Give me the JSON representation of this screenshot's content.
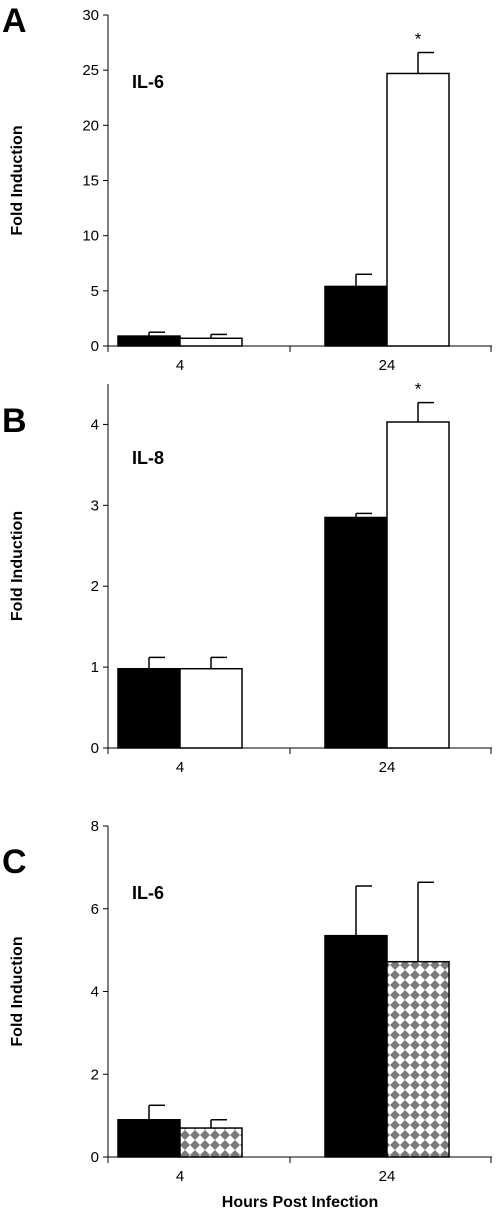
{
  "chart_data": [
    {
      "type": "bar",
      "panel": "A",
      "annotation": "IL-6",
      "ylabel": "Fold Induction",
      "xlabel": "",
      "categories": [
        "4",
        "24"
      ],
      "ylim": [
        0,
        30
      ],
      "yticks": [
        0,
        5,
        10,
        15,
        20,
        25,
        30
      ],
      "series": [
        {
          "values": [
            0.9,
            5.4
          ],
          "errors": [
            0.35,
            1.1
          ],
          "fill": "#000000"
        },
        {
          "values": [
            0.7,
            24.7
          ],
          "errors": [
            0.35,
            1.9
          ],
          "fill": "#ffffff"
        }
      ],
      "significance": [
        {
          "category": 1,
          "series": 1,
          "label": "*"
        }
      ]
    },
    {
      "type": "bar",
      "panel": "B",
      "annotation": "IL-8",
      "ylabel": "Fold Induction",
      "xlabel": "",
      "categories": [
        "4",
        "24"
      ],
      "ylim": [
        0,
        4.5
      ],
      "yticks": [
        0,
        1,
        2,
        3,
        4
      ],
      "series": [
        {
          "values": [
            0.98,
            2.85
          ],
          "errors": [
            0.14,
            0.05
          ],
          "fill": "#000000"
        },
        {
          "values": [
            0.98,
            4.03
          ],
          "errors": [
            0.14,
            0.24
          ],
          "fill": "#ffffff"
        }
      ],
      "significance": [
        {
          "category": 1,
          "series": 1,
          "label": "*"
        }
      ]
    },
    {
      "type": "bar",
      "panel": "C",
      "annotation": "IL-6",
      "ylabel": "Fold Induction",
      "xlabel": "Hours Post Infection",
      "categories": [
        "4",
        "24"
      ],
      "ylim": [
        0,
        8
      ],
      "yticks": [
        0,
        2,
        4,
        6,
        8
      ],
      "series": [
        {
          "values": [
            0.9,
            5.35
          ],
          "errors": [
            0.35,
            1.2
          ],
          "fill": "#000000"
        },
        {
          "values": [
            0.7,
            4.72
          ],
          "errors": [
            0.2,
            1.92
          ],
          "fill": "pattern-checker"
        }
      ],
      "significance": []
    }
  ]
}
